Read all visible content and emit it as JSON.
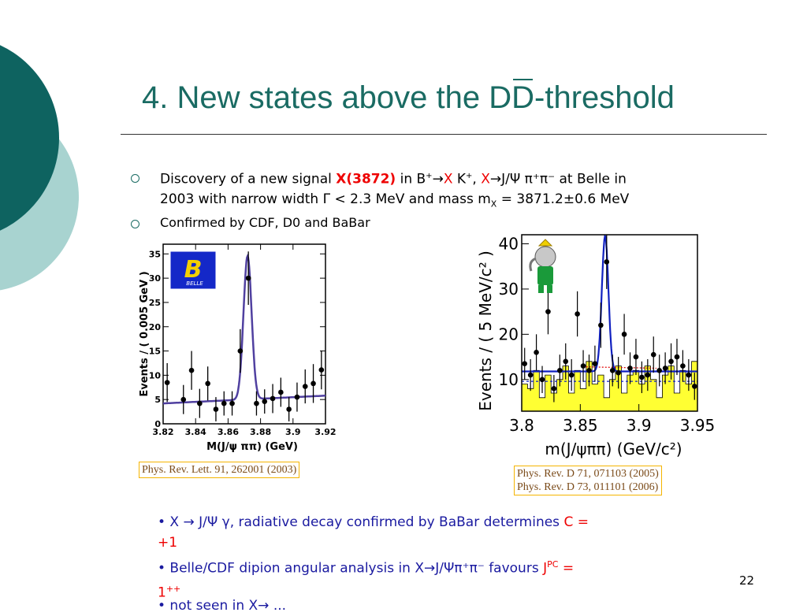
{
  "slide": {
    "title_pre": "4. New states above the D",
    "title_over": "D",
    "title_post": "-threshold",
    "bullet1_a": "Discovery of a new signal ",
    "bullet1_signal": "X(3872)",
    "bullet1_b": " in B",
    "bullet1_sup": "+",
    "bullet1_c": "→",
    "bullet1_d": "X",
    "bullet1_e": " K",
    "bullet1_f": "+",
    "bullet1_g": ", ",
    "bullet1_h": "X",
    "bullet1_i": "→J/Ψ ",
    "bullet1_j": "π⁺π⁻",
    "bullet1_k": " at Belle in",
    "bullet1_line2a": "2003",
    "bullet1_line2b": " with narrow width Γ < 2.3 MeV and mass m",
    "bullet1_sub": "X",
    "bullet1_line2c": " = 3871.2±0.6 MeV",
    "bullet2": "Confirmed by CDF, D0 and BaBar",
    "cite_belle": "Phys. Rev. Lett. 91, 262001 (2003)",
    "cite_babar_1": "Phys. Rev. D 71, 071103 (2005)",
    "cite_babar_2": "Phys. Rev. D 73, 011101 (2006)",
    "b3_a": "• X → J/Ψ γ,",
    "b3_b": " radiative decay confirmed by BaBar determines ",
    "b3_c": "C",
    "b3_d": " =",
    "b3_e": "+1",
    "b4_a": "• Belle/CDF dipion angular analysis in X→J/Ψπ⁺π⁻ favours ",
    "b4_j": "J",
    "b4_sup": "PC",
    "b4_eq": " =",
    "b4_val": "1",
    "b4_valsup": "++",
    "b5": "• not seen in X→ ...",
    "page_number": "22",
    "colors": {
      "title": "#1a6b63",
      "dark_teal": "#0e6360",
      "light_teal": "#a8d3d0",
      "red": "#e00000",
      "blue_text": "#1a1aa0",
      "fit_line": "#5040a0",
      "babar_fit": "#1020c0",
      "babar_fill": "#ffff33"
    }
  },
  "chart_data": [
    {
      "type": "scatter",
      "title": "",
      "logo": "BELLE",
      "xlabel": "M(J/ψ ππ) (GeV)",
      "ylabel": "Events / ( 0.005 GeV )",
      "xlim": [
        3.82,
        3.92
      ],
      "ylim": [
        0,
        37
      ],
      "xticks": [
        "3.82",
        "3.84",
        "3.86",
        "3.88",
        "3.9",
        "3.92"
      ],
      "yticks": [
        "0",
        "5",
        "10",
        "15",
        "20",
        "25",
        "30",
        "35"
      ],
      "points": [
        {
          "x": 3.8225,
          "y": 8.5,
          "err": 4
        },
        {
          "x": 3.8325,
          "y": 5,
          "err": 3
        },
        {
          "x": 3.8375,
          "y": 11,
          "err": 4
        },
        {
          "x": 3.8425,
          "y": 4.2,
          "err": 3
        },
        {
          "x": 3.8475,
          "y": 8.3,
          "err": 3.5
        },
        {
          "x": 3.8525,
          "y": 3,
          "err": 2.5
        },
        {
          "x": 3.8575,
          "y": 4.2,
          "err": 2.5
        },
        {
          "x": 3.8625,
          "y": 4.2,
          "err": 2.5
        },
        {
          "x": 3.8675,
          "y": 15,
          "err": 4.5
        },
        {
          "x": 3.8725,
          "y": 30,
          "err": 5.5
        },
        {
          "x": 3.8775,
          "y": 4.2,
          "err": 2.5
        },
        {
          "x": 3.8825,
          "y": 4.6,
          "err": 2.5
        },
        {
          "x": 3.8875,
          "y": 5.2,
          "err": 3
        },
        {
          "x": 3.8925,
          "y": 6.5,
          "err": 3
        },
        {
          "x": 3.8975,
          "y": 3,
          "err": 2.5
        },
        {
          "x": 3.9025,
          "y": 5.5,
          "err": 3
        },
        {
          "x": 3.9075,
          "y": 7.7,
          "err": 3.5
        },
        {
          "x": 3.9125,
          "y": 8.3,
          "err": 4
        },
        {
          "x": 3.9175,
          "y": 11.1,
          "err": 4
        }
      ],
      "fit": {
        "baseline_start": 4.2,
        "baseline_end": 5.8,
        "peak_x": 3.872,
        "peak_height": 29.5,
        "sigma": 0.0025
      }
    },
    {
      "type": "scatter",
      "title": "",
      "xlabel": "m(J/ψππ) (GeV/c²)",
      "ylabel": "Events / ( 5 MeV/c² )",
      "xlim": [
        3.8,
        3.95
      ],
      "ylim": [
        3,
        42
      ],
      "xticks": [
        "3.8",
        "3.85",
        "3.9",
        "3.95"
      ],
      "yticks": [
        "10",
        "20",
        "30",
        "40"
      ],
      "points": [
        {
          "x": 3.8025,
          "y": 13.5,
          "err": 3.5
        },
        {
          "x": 3.8075,
          "y": 11,
          "err": 3.5
        },
        {
          "x": 3.8125,
          "y": 16,
          "err": 4
        },
        {
          "x": 3.8175,
          "y": 10,
          "err": 3
        },
        {
          "x": 3.8225,
          "y": 25,
          "err": 5
        },
        {
          "x": 3.8275,
          "y": 8,
          "err": 3
        },
        {
          "x": 3.8325,
          "y": 12,
          "err": 3.5
        },
        {
          "x": 3.8375,
          "y": 14,
          "err": 4
        },
        {
          "x": 3.8425,
          "y": 11,
          "err": 3.5
        },
        {
          "x": 3.8475,
          "y": 24.5,
          "err": 5
        },
        {
          "x": 3.8525,
          "y": 13,
          "err": 3.5
        },
        {
          "x": 3.8575,
          "y": 12,
          "err": 3.5
        },
        {
          "x": 3.8625,
          "y": 13.5,
          "err": 4
        },
        {
          "x": 3.8675,
          "y": 22,
          "err": 5
        },
        {
          "x": 3.8725,
          "y": 36,
          "err": 6
        },
        {
          "x": 3.8775,
          "y": 12,
          "err": 3.5
        },
        {
          "x": 3.8825,
          "y": 11.5,
          "err": 3.5
        },
        {
          "x": 3.8875,
          "y": 20,
          "err": 4.5
        },
        {
          "x": 3.8925,
          "y": 12.5,
          "err": 3.5
        },
        {
          "x": 3.8975,
          "y": 15,
          "err": 4
        },
        {
          "x": 3.9025,
          "y": 10.5,
          "err": 3.5
        },
        {
          "x": 3.9075,
          "y": 11,
          "err": 3.5
        },
        {
          "x": 3.9125,
          "y": 15.5,
          "err": 4
        },
        {
          "x": 3.9175,
          "y": 12,
          "err": 3.5
        },
        {
          "x": 3.9225,
          "y": 12.5,
          "err": 3.5
        },
        {
          "x": 3.9275,
          "y": 14,
          "err": 4
        },
        {
          "x": 3.9325,
          "y": 15,
          "err": 4
        },
        {
          "x": 3.9375,
          "y": 13,
          "err": 3.5
        },
        {
          "x": 3.9425,
          "y": 11,
          "err": 3.5
        },
        {
          "x": 3.9475,
          "y": 8.5,
          "err": 3
        }
      ],
      "hist": [
        9,
        8,
        12,
        6,
        11,
        7,
        10,
        13,
        7,
        12,
        8,
        14,
        9,
        11,
        6,
        10,
        13,
        7,
        11,
        12,
        9,
        13,
        10,
        6,
        11,
        13,
        7,
        12,
        9,
        14
      ],
      "fit": {
        "baseline": 11.8,
        "peak_x": 3.8712,
        "peak_height": 30,
        "sigma": 0.0028
      },
      "dotted_bg": 9.6,
      "red_dotted": 12.8
    }
  ]
}
